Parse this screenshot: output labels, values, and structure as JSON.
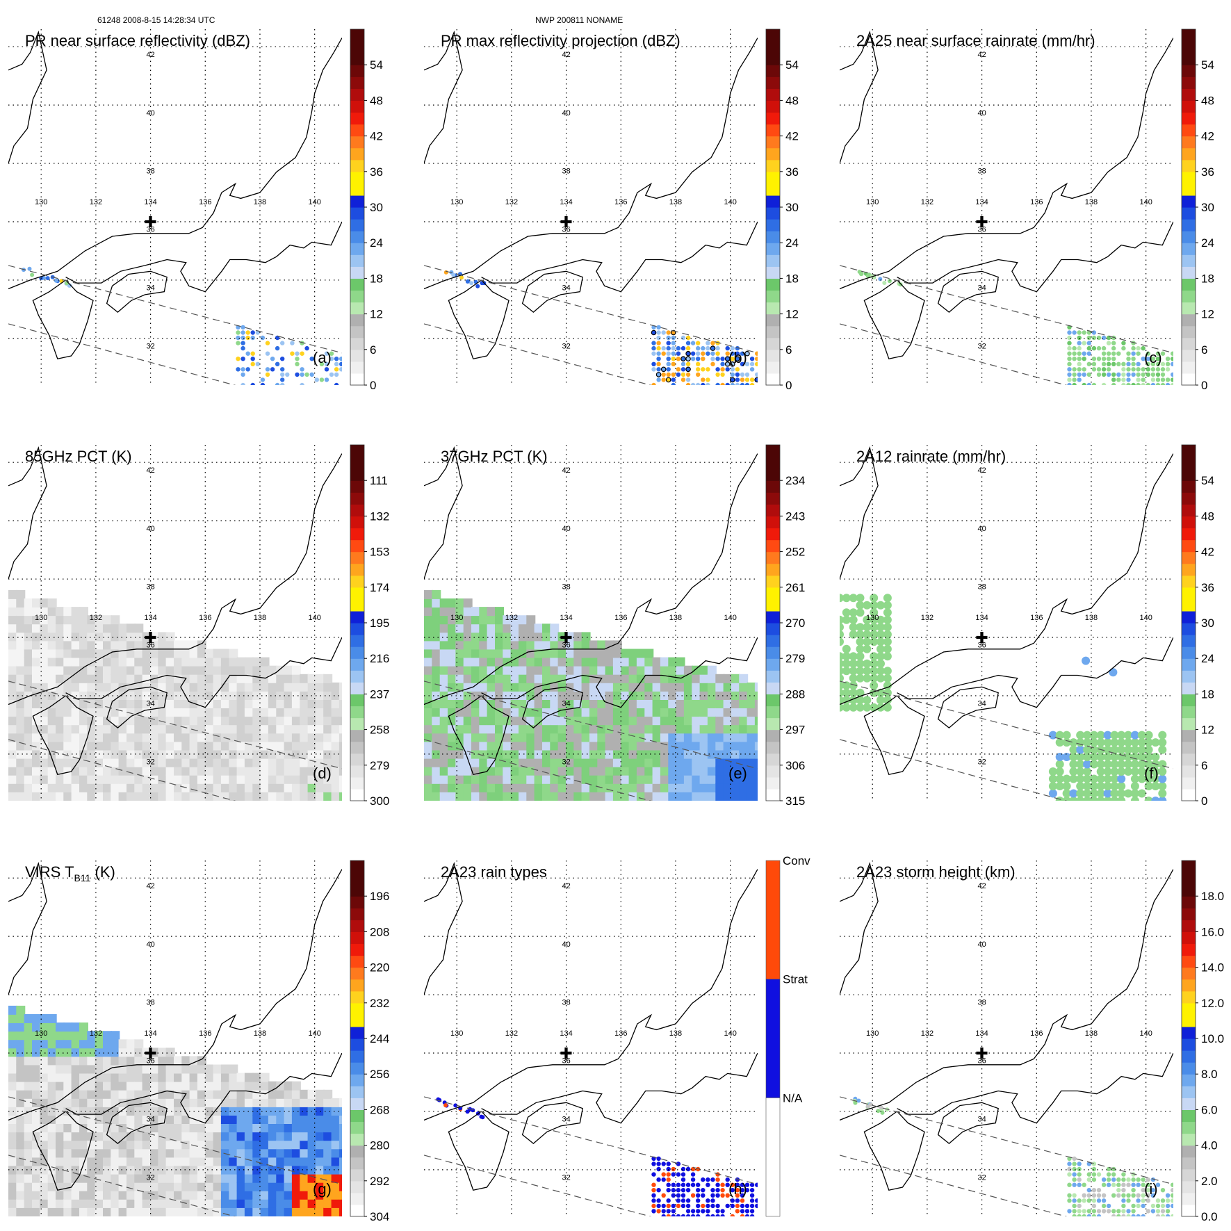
{
  "header": {
    "orbit_info": "61248 2008-8-15 14:28:34 UTC",
    "case_info": "NWP 200811 NONAME"
  },
  "map": {
    "lon_ticks": [
      "130",
      "132",
      "134",
      "136",
      "138",
      "140"
    ],
    "lat_ticks": [
      "32",
      "34",
      "36",
      "38",
      "40",
      "42"
    ],
    "lon_range": [
      128.8,
      141.0
    ],
    "lat_range": [
      30.4,
      42.6
    ],
    "center_marker": {
      "lon": 134.0,
      "lat": 36.0,
      "glyph": "✚"
    }
  },
  "colors": {
    "palette": [
      "#ffffff",
      "#f0f0f0",
      "#e4e4e4",
      "#d6d6d6",
      "#c4c4c4",
      "#b0b0b0",
      "#9c9c9c",
      "#b8e8b0",
      "#8fd88a",
      "#6cc76a",
      "#c8d8f4",
      "#9cc4f2",
      "#6ea8ee",
      "#4a8ce8",
      "#2f6ee4",
      "#1d4de0",
      "#0f20d8",
      "#fff200",
      "#ffd21e",
      "#ffa51e",
      "#ff7a1e",
      "#ff4a12",
      "#f01a0a",
      "#d0100a",
      "#b00c0c",
      "#8c0a0a",
      "#6c0808",
      "#4c0606"
    ],
    "rain_types": [
      "#ffffff",
      "#1010e0",
      "#ff4a0a"
    ],
    "map_line": "#000000",
    "grid_line": "#000000",
    "swath_line": "#555555"
  },
  "chart_data": [
    {
      "id": "a",
      "type": "heatmap",
      "panel_label": "(a)",
      "title": "PR near surface reflectivity (dBZ)",
      "colorbar": {
        "ticks": [
          "0",
          "6",
          "12",
          "18",
          "24",
          "30",
          "36",
          "42",
          "48",
          "54"
        ],
        "range": [
          0,
          60
        ]
      }
    },
    {
      "id": "b",
      "type": "heatmap",
      "panel_label": "(b)",
      "title": "PR max reflectivity projection (dBZ)",
      "colorbar": {
        "ticks": [
          "0",
          "6",
          "12",
          "18",
          "24",
          "30",
          "36",
          "42",
          "48",
          "54"
        ],
        "range": [
          0,
          60
        ]
      }
    },
    {
      "id": "c",
      "type": "heatmap",
      "panel_label": "(c)",
      "title": "2A25 near surface rainrate (mm/hr)",
      "colorbar": {
        "ticks": [
          "0",
          "6",
          "12",
          "18",
          "24",
          "30",
          "36",
          "42",
          "48",
          "54"
        ],
        "range": [
          0,
          60
        ]
      }
    },
    {
      "id": "d",
      "type": "heatmap",
      "panel_label": "(d)",
      "title": "85GHz PCT (K)",
      "colorbar": {
        "ticks": [
          "300",
          "279",
          "258",
          "237",
          "216",
          "195",
          "174",
          "153",
          "132",
          "111"
        ],
        "range": [
          300,
          90
        ]
      }
    },
    {
      "id": "e",
      "type": "heatmap",
      "panel_label": "(e)",
      "title": "37GHz PCT (K)",
      "colorbar": {
        "ticks": [
          "315",
          "306",
          "297",
          "288",
          "279",
          "270",
          "261",
          "252",
          "243",
          "234"
        ],
        "range": [
          315,
          225
        ]
      }
    },
    {
      "id": "f",
      "type": "heatmap",
      "panel_label": "(f)",
      "title": "2A12 rainrate (mm/hr)",
      "colorbar": {
        "ticks": [
          "0",
          "6",
          "12",
          "18",
          "24",
          "30",
          "36",
          "42",
          "48",
          "54"
        ],
        "range": [
          0,
          60
        ]
      }
    },
    {
      "id": "g",
      "type": "heatmap",
      "panel_label": "(g)",
      "title": "VIRS T",
      "title_sub": "B11",
      "title_after": " (K)",
      "colorbar": {
        "ticks": [
          "304",
          "292",
          "280",
          "268",
          "256",
          "244",
          "232",
          "220",
          "208",
          "196"
        ],
        "range": [
          304,
          184
        ]
      }
    },
    {
      "id": "h",
      "type": "heatmap",
      "panel_label": "(h)",
      "title": "2A23 rain types",
      "colorbar": {
        "categorical": true,
        "ticks": [
          "N/A",
          "Strat",
          "Conv"
        ]
      }
    },
    {
      "id": "i",
      "type": "heatmap",
      "panel_label": "(i)",
      "title": "2A23 storm height (km)",
      "colorbar": {
        "ticks": [
          "0.0",
          "2.0",
          "4.0",
          "6.0",
          "8.0",
          "10.0",
          "12.0",
          "14.0",
          "16.0",
          "18.0"
        ],
        "range": [
          0,
          20
        ]
      }
    }
  ]
}
